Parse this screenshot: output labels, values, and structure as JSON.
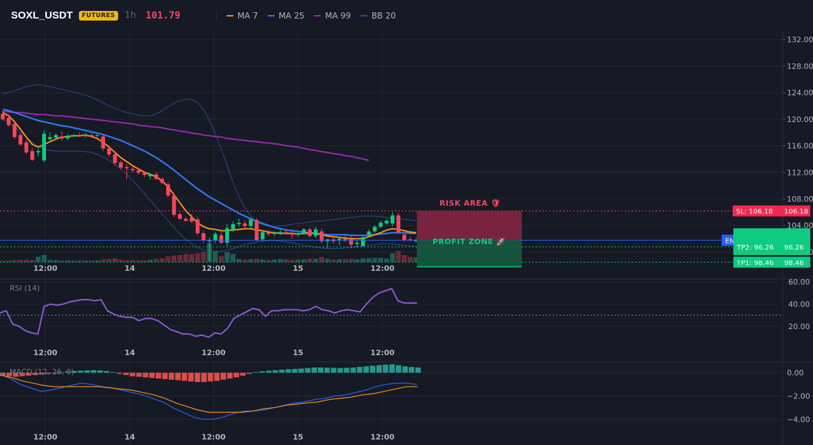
{
  "header": {
    "symbol": "SOXL_USDT",
    "badge": "FUTURES",
    "interval": "1h",
    "price": "101.79",
    "legend": [
      {
        "label": "MA 7",
        "color": "#f7931a"
      },
      {
        "label": "MA 25",
        "color": "#3179f5"
      },
      {
        "label": "MA 99",
        "color": "#9c27b0"
      },
      {
        "label": "BB 20",
        "color": "#2b4c8c"
      }
    ]
  },
  "colors": {
    "background": "#161a25",
    "grid": "#232733",
    "up": "#0ecb81",
    "down": "#f6465d",
    "entry": "#2962ff",
    "sl": "#f6465d",
    "tp": "#0ecb81"
  },
  "chart_data": [
    {
      "type": "candlestick",
      "title": "SOXL_USDT 1h",
      "x_ticks": [
        "12:00",
        "14",
        "12:00",
        "15",
        "12:00"
      ],
      "y_ticks": [
        "132.00",
        "128.00",
        "124.00",
        "120.00",
        "116.00",
        "112.00",
        "108.00",
        "104.00",
        "100.00"
      ],
      "ylim": [
        98.5,
        133.2
      ],
      "grid": true,
      "candles": [
        {
          "o": 120.8,
          "h": 121.3,
          "l": 119.8,
          "c": 120.0
        },
        {
          "o": 120.2,
          "h": 120.7,
          "l": 118.9,
          "c": 119.1
        },
        {
          "o": 119.3,
          "h": 119.7,
          "l": 117.0,
          "c": 117.3
        },
        {
          "o": 117.6,
          "h": 118.0,
          "l": 116.0,
          "c": 116.2
        },
        {
          "o": 116.5,
          "h": 116.9,
          "l": 114.8,
          "c": 115.0
        },
        {
          "o": 115.2,
          "h": 115.6,
          "l": 113.7,
          "c": 113.9
        },
        {
          "o": 115.0,
          "h": 115.6,
          "l": 114.4,
          "c": 115.2
        },
        {
          "o": 113.8,
          "h": 118.3,
          "l": 113.5,
          "c": 117.8
        },
        {
          "o": 117.0,
          "h": 118.0,
          "l": 116.5,
          "c": 117.3
        },
        {
          "o": 117.2,
          "h": 117.9,
          "l": 116.9,
          "c": 117.6
        },
        {
          "o": 117.4,
          "h": 118.2,
          "l": 116.8,
          "c": 117.1
        },
        {
          "o": 117.1,
          "h": 117.7,
          "l": 116.8,
          "c": 117.5
        },
        {
          "o": 117.4,
          "h": 117.8,
          "l": 117.2,
          "c": 117.6
        },
        {
          "o": 117.6,
          "h": 118.0,
          "l": 117.3,
          "c": 117.5
        },
        {
          "o": 117.5,
          "h": 117.9,
          "l": 117.2,
          "c": 117.7
        },
        {
          "o": 117.6,
          "h": 117.9,
          "l": 117.3,
          "c": 117.4
        },
        {
          "o": 117.5,
          "h": 117.9,
          "l": 117.3,
          "c": 117.6
        },
        {
          "o": 117.4,
          "h": 117.6,
          "l": 115.2,
          "c": 115.6
        },
        {
          "o": 115.6,
          "h": 116.0,
          "l": 114.3,
          "c": 114.7
        },
        {
          "o": 114.7,
          "h": 115.2,
          "l": 113.0,
          "c": 113.4
        },
        {
          "o": 113.5,
          "h": 113.8,
          "l": 112.4,
          "c": 112.7
        },
        {
          "o": 112.8,
          "h": 113.2,
          "l": 111.0,
          "c": 112.6
        },
        {
          "o": 112.5,
          "h": 113.0,
          "l": 112.0,
          "c": 112.3
        },
        {
          "o": 112.3,
          "h": 112.6,
          "l": 111.7,
          "c": 111.9
        },
        {
          "o": 111.9,
          "h": 112.2,
          "l": 111.3,
          "c": 111.6
        },
        {
          "o": 111.4,
          "h": 111.8,
          "l": 110.9,
          "c": 111.7
        },
        {
          "o": 111.7,
          "h": 112.0,
          "l": 110.8,
          "c": 111.0
        },
        {
          "o": 111.0,
          "h": 111.3,
          "l": 110.2,
          "c": 110.4
        },
        {
          "o": 110.2,
          "h": 110.5,
          "l": 108.2,
          "c": 108.5
        },
        {
          "o": 108.5,
          "h": 108.9,
          "l": 105.3,
          "c": 105.6
        },
        {
          "o": 105.7,
          "h": 106.0,
          "l": 104.8,
          "c": 105.0
        },
        {
          "o": 105.0,
          "h": 105.3,
          "l": 104.5,
          "c": 104.7
        },
        {
          "o": 105.2,
          "h": 105.7,
          "l": 104.3,
          "c": 104.6
        },
        {
          "o": 104.9,
          "h": 105.3,
          "l": 102.6,
          "c": 102.8
        },
        {
          "o": 102.8,
          "h": 103.2,
          "l": 101.4,
          "c": 101.8
        },
        {
          "o": 101.6,
          "h": 102.2,
          "l": 98.6,
          "c": 101.7
        },
        {
          "o": 101.8,
          "h": 103.0,
          "l": 101.4,
          "c": 102.7
        },
        {
          "o": 102.5,
          "h": 103.0,
          "l": 101.2,
          "c": 101.4
        },
        {
          "o": 101.4,
          "h": 104.2,
          "l": 100.9,
          "c": 103.6
        },
        {
          "o": 103.3,
          "h": 104.6,
          "l": 103.0,
          "c": 104.2
        },
        {
          "o": 104.2,
          "h": 105.0,
          "l": 103.8,
          "c": 104.4
        },
        {
          "o": 104.3,
          "h": 104.7,
          "l": 103.6,
          "c": 103.9
        },
        {
          "o": 103.9,
          "h": 105.2,
          "l": 103.6,
          "c": 104.9
        },
        {
          "o": 104.8,
          "h": 105.1,
          "l": 101.6,
          "c": 101.8
        },
        {
          "o": 101.9,
          "h": 103.2,
          "l": 101.6,
          "c": 103.0
        },
        {
          "o": 102.9,
          "h": 103.3,
          "l": 102.4,
          "c": 102.7
        },
        {
          "o": 102.7,
          "h": 103.1,
          "l": 102.4,
          "c": 102.9
        },
        {
          "o": 102.8,
          "h": 103.4,
          "l": 102.5,
          "c": 103.0
        },
        {
          "o": 103.0,
          "h": 103.3,
          "l": 102.6,
          "c": 102.8
        },
        {
          "o": 102.8,
          "h": 103.2,
          "l": 102.0,
          "c": 102.6
        },
        {
          "o": 102.6,
          "h": 103.0,
          "l": 102.3,
          "c": 102.8
        },
        {
          "o": 102.8,
          "h": 103.6,
          "l": 102.6,
          "c": 103.4
        },
        {
          "o": 103.4,
          "h": 103.7,
          "l": 102.2,
          "c": 102.4
        },
        {
          "o": 102.4,
          "h": 103.8,
          "l": 102.1,
          "c": 103.4
        },
        {
          "o": 103.1,
          "h": 103.5,
          "l": 101.3,
          "c": 101.6
        },
        {
          "o": 101.6,
          "h": 102.0,
          "l": 100.6,
          "c": 101.9
        },
        {
          "o": 101.9,
          "h": 102.3,
          "l": 101.3,
          "c": 101.6
        },
        {
          "o": 101.7,
          "h": 102.3,
          "l": 101.0,
          "c": 102.0
        },
        {
          "o": 102.0,
          "h": 102.5,
          "l": 101.5,
          "c": 101.8
        },
        {
          "o": 101.9,
          "h": 102.4,
          "l": 100.6,
          "c": 101.1
        },
        {
          "o": 101.2,
          "h": 101.7,
          "l": 100.6,
          "c": 101.4
        },
        {
          "o": 100.9,
          "h": 102.5,
          "l": 100.8,
          "c": 102.2
        },
        {
          "o": 102.6,
          "h": 103.4,
          "l": 102.3,
          "c": 103.1
        },
        {
          "o": 103.1,
          "h": 104.0,
          "l": 102.9,
          "c": 103.8
        },
        {
          "o": 103.8,
          "h": 104.7,
          "l": 103.6,
          "c": 104.4
        },
        {
          "o": 104.3,
          "h": 105.0,
          "l": 104.1,
          "c": 104.7
        },
        {
          "o": 104.3,
          "h": 106.0,
          "l": 103.9,
          "c": 105.5
        },
        {
          "o": 105.5,
          "h": 105.9,
          "l": 102.7,
          "c": 103.0
        },
        {
          "o": 102.6,
          "h": 102.9,
          "l": 101.6,
          "c": 101.8
        },
        {
          "o": 101.9,
          "h": 102.3,
          "l": 101.6,
          "c": 101.8
        },
        {
          "o": 101.6,
          "h": 102.1,
          "l": 101.5,
          "c": 101.8
        }
      ],
      "volumes": [
        4,
        5,
        6,
        7,
        8,
        7,
        18,
        24,
        7,
        6,
        5,
        5,
        4,
        5,
        4,
        5,
        5,
        9,
        10,
        12,
        8,
        6,
        7,
        5,
        6,
        8,
        10,
        13,
        19,
        22,
        24,
        28,
        27,
        30,
        35,
        65,
        38,
        20,
        34,
        28,
        10,
        8,
        9,
        11,
        8,
        7,
        8,
        10,
        9,
        7,
        8,
        9,
        12,
        11,
        17,
        11,
        8,
        9,
        10,
        11,
        9,
        12,
        13,
        14,
        14,
        12,
        30,
        38,
        24,
        18,
        15
      ],
      "ma7": [
        121.0,
        120.5,
        119.6,
        118.5,
        117.3,
        116.2,
        115.8,
        116.2,
        116.6,
        117.0,
        117.3,
        117.4,
        117.5,
        117.5,
        117.6,
        117.4,
        117.1,
        116.5,
        115.8,
        115.0,
        114.2,
        113.6,
        113.0,
        112.5,
        112.0,
        111.7,
        111.3,
        110.7,
        109.8,
        108.6,
        107.4,
        106.2,
        105.3,
        104.4,
        103.8,
        103.5,
        103.4,
        103.2,
        103.2,
        103.3,
        103.4,
        103.5,
        103.5,
        103.3,
        103.2,
        103.0,
        102.9,
        102.8,
        102.8,
        102.8,
        102.7,
        102.8,
        102.8,
        102.8,
        102.6,
        102.4,
        102.3,
        102.2,
        102.1,
        102.0,
        102.0,
        102.0,
        102.3,
        102.6,
        102.9,
        103.3,
        103.5,
        103.4,
        103.2,
        103.0,
        102.9
      ],
      "ma25": [
        121.5,
        121.3,
        121.0,
        120.7,
        120.4,
        120.1,
        119.8,
        119.6,
        119.4,
        119.2,
        119.0,
        118.9,
        118.7,
        118.5,
        118.3,
        118.1,
        117.9,
        117.7,
        117.4,
        117.1,
        116.8,
        116.4,
        116.0,
        115.6,
        115.2,
        114.7,
        114.2,
        113.6,
        113.0,
        112.3,
        111.6,
        110.9,
        110.2,
        109.5,
        108.9,
        108.3,
        107.8,
        107.3,
        106.8,
        106.3,
        105.8,
        105.4,
        105.0,
        104.6,
        104.3,
        104.0,
        103.7,
        103.5,
        103.3,
        103.2,
        103.1,
        103.0,
        102.9,
        102.8,
        102.7,
        102.6,
        102.6,
        102.6,
        102.6,
        102.5,
        102.5,
        102.5,
        102.5,
        102.6,
        102.7,
        102.8,
        102.9,
        102.9,
        102.9,
        102.8,
        102.8
      ],
      "ma99": [
        121.2,
        121.1,
        121.0,
        121.0,
        120.9,
        120.8,
        120.7,
        120.7,
        120.6,
        120.5,
        120.5,
        120.4,
        120.3,
        120.2,
        120.1,
        120.0,
        119.9,
        119.8,
        119.7,
        119.6,
        119.5,
        119.4,
        119.3,
        119.1,
        119.0,
        118.9,
        118.8,
        118.7,
        118.5,
        118.4,
        118.2,
        118.1,
        117.9,
        117.8,
        117.6,
        117.5,
        117.4,
        117.3,
        117.1,
        117.0,
        116.9,
        116.8,
        116.7,
        116.6,
        116.5,
        116.4,
        116.3,
        116.2,
        116.0,
        115.9,
        115.8,
        115.6,
        115.4,
        115.3,
        115.1,
        115.0,
        114.8,
        114.7,
        114.5,
        114.4,
        114.2,
        114.0,
        113.8
      ],
      "bb_upper": [
        123.8,
        124.0,
        124.3,
        124.6,
        124.9,
        125.1,
        125.2,
        125.1,
        124.9,
        124.7,
        124.5,
        124.3,
        124.1,
        123.9,
        123.6,
        123.3,
        122.9,
        122.5,
        122.0,
        121.6,
        121.3,
        121.0,
        120.8,
        120.6,
        120.5,
        120.5,
        120.8,
        121.3,
        121.9,
        122.4,
        122.8,
        123.0,
        123.0,
        122.5,
        121.4,
        119.8,
        117.8,
        115.5,
        113.0,
        110.5,
        108.3,
        106.6,
        105.4,
        104.6,
        104.1,
        103.9,
        103.8,
        103.9,
        104.0,
        104.2,
        104.3,
        104.4,
        104.5,
        104.6,
        104.7,
        104.8,
        104.9,
        105.0,
        105.1,
        105.2,
        105.3,
        105.4,
        105.4,
        105.4,
        105.3,
        105.2,
        105.1,
        105.0,
        104.9,
        104.8,
        104.7
      ],
      "bb_lower": [
        120.0,
        119.5,
        118.8,
        118.1,
        117.3,
        116.5,
        115.9,
        115.5,
        115.3,
        115.2,
        115.2,
        115.2,
        115.2,
        115.2,
        115.1,
        115.0,
        114.7,
        114.3,
        113.8,
        113.2,
        112.5,
        111.7,
        110.8,
        109.8,
        108.8,
        107.7,
        106.7,
        105.7,
        104.7,
        103.7,
        102.7,
        101.9,
        101.2,
        100.7,
        100.3,
        100.1,
        100.0,
        100.1,
        100.3,
        100.5,
        100.8,
        101.1,
        101.3,
        101.5,
        101.6,
        101.7,
        101.7,
        101.6,
        101.5,
        101.4,
        101.2,
        101.0,
        100.9,
        100.7,
        100.6,
        100.5,
        100.5,
        100.5,
        100.6,
        100.7,
        100.8,
        100.9,
        101.0,
        101.1,
        101.2,
        101.2,
        101.2,
        101.1,
        101.0,
        100.9,
        100.8
      ],
      "levels": {
        "sl": {
          "value": 106.18,
          "label": "SL: 106.18",
          "price_label": "106.18"
        },
        "entry": {
          "value": 101.77,
          "label": "ENTRY: 101.77",
          "price_label": "101.77"
        },
        "tp1": {
          "value": 98.46,
          "label": "TP1: 98.46",
          "price_label": "98.46"
        },
        "tp2": {
          "value": 96.26,
          "label": "TP2: 96.26",
          "price_label": "96.26"
        }
      },
      "zones": {
        "risk": "RISK AREA 🛡",
        "profit": "PROFIT ZONE 🚀"
      }
    },
    {
      "type": "line",
      "title": "RSI (14)",
      "y_ticks": [
        "60.00",
        "40.00",
        "20.00"
      ],
      "ylim": [
        5,
        62
      ],
      "reference": 30,
      "series": [
        {
          "name": "RSI (14)",
          "values": [
            32,
            34,
            22,
            20,
            16,
            14,
            13,
            38,
            40,
            39,
            40,
            42,
            43,
            44,
            44,
            43,
            44,
            34,
            31,
            29,
            28,
            28,
            25,
            27,
            27,
            25,
            21,
            17,
            15,
            13,
            13,
            11,
            12,
            10,
            14,
            13,
            18,
            27,
            30,
            33,
            36,
            35,
            29,
            34,
            34,
            35,
            35,
            35,
            34,
            35,
            38,
            35,
            34,
            32,
            34,
            35,
            34,
            33,
            40,
            46,
            50,
            52,
            54,
            43,
            41,
            41,
            41
          ]
        }
      ]
    },
    {
      "type": "bar+line",
      "title": "MACD (12, 26, 9)",
      "y_ticks": [
        "0.00",
        "−2.00",
        "−4.00"
      ],
      "ylim": [
        -4.8,
        0.8
      ],
      "histogram": [
        -0.25,
        -0.3,
        -0.35,
        -0.3,
        -0.25,
        -0.2,
        -0.15,
        -0.1,
        -0.05,
        0.05,
        0.1,
        0.15,
        0.18,
        0.2,
        0.22,
        0.2,
        0.15,
        0.05,
        -0.1,
        -0.2,
        -0.3,
        -0.35,
        -0.4,
        -0.45,
        -0.5,
        -0.55,
        -0.6,
        -0.65,
        -0.7,
        -0.75,
        -0.8,
        -0.8,
        -0.75,
        -0.7,
        -0.6,
        -0.5,
        -0.4,
        -0.25,
        -0.1,
        0.05,
        0.12,
        0.18,
        0.22,
        0.26,
        0.3,
        0.33,
        0.36,
        0.4,
        0.45,
        0.45,
        0.43,
        0.42,
        0.4,
        0.42,
        0.45,
        0.5,
        0.55,
        0.6,
        0.65,
        0.7,
        0.72,
        0.65,
        0.55,
        0.5,
        0.45
      ],
      "series": [
        {
          "name": "MACD",
          "values": [
            -0.1,
            -0.5,
            -1.0,
            -1.3,
            -1.6,
            -1.5,
            -1.3,
            -1.1,
            -0.9,
            -1.0,
            -1.2,
            -1.3,
            -1.5,
            -1.7,
            -1.9,
            -2.2,
            -2.5,
            -3.0,
            -3.4,
            -3.8,
            -4.0,
            -4.0,
            -3.8,
            -3.5,
            -3.3,
            -3.3,
            -3.2,
            -3.0,
            -2.8,
            -2.6,
            -2.5,
            -2.3,
            -2.2,
            -2.0,
            -1.9,
            -1.7,
            -1.5,
            -1.2,
            -1.0,
            -0.9,
            -0.9,
            -1.0
          ]
        },
        {
          "name": "Signal",
          "values": [
            -0.2,
            -0.4,
            -0.7,
            -0.9,
            -1.1,
            -1.2,
            -1.2,
            -1.2,
            -1.2,
            -1.2,
            -1.3,
            -1.4,
            -1.5,
            -1.7,
            -1.9,
            -2.2,
            -2.6,
            -2.9,
            -3.2,
            -3.4,
            -3.4,
            -3.4,
            -3.4,
            -3.3,
            -3.1,
            -3.0,
            -2.8,
            -2.7,
            -2.6,
            -2.5,
            -2.3,
            -2.2,
            -2.1,
            -1.9,
            -1.8,
            -1.6,
            -1.4,
            -1.2,
            -1.2
          ]
        }
      ]
    }
  ]
}
